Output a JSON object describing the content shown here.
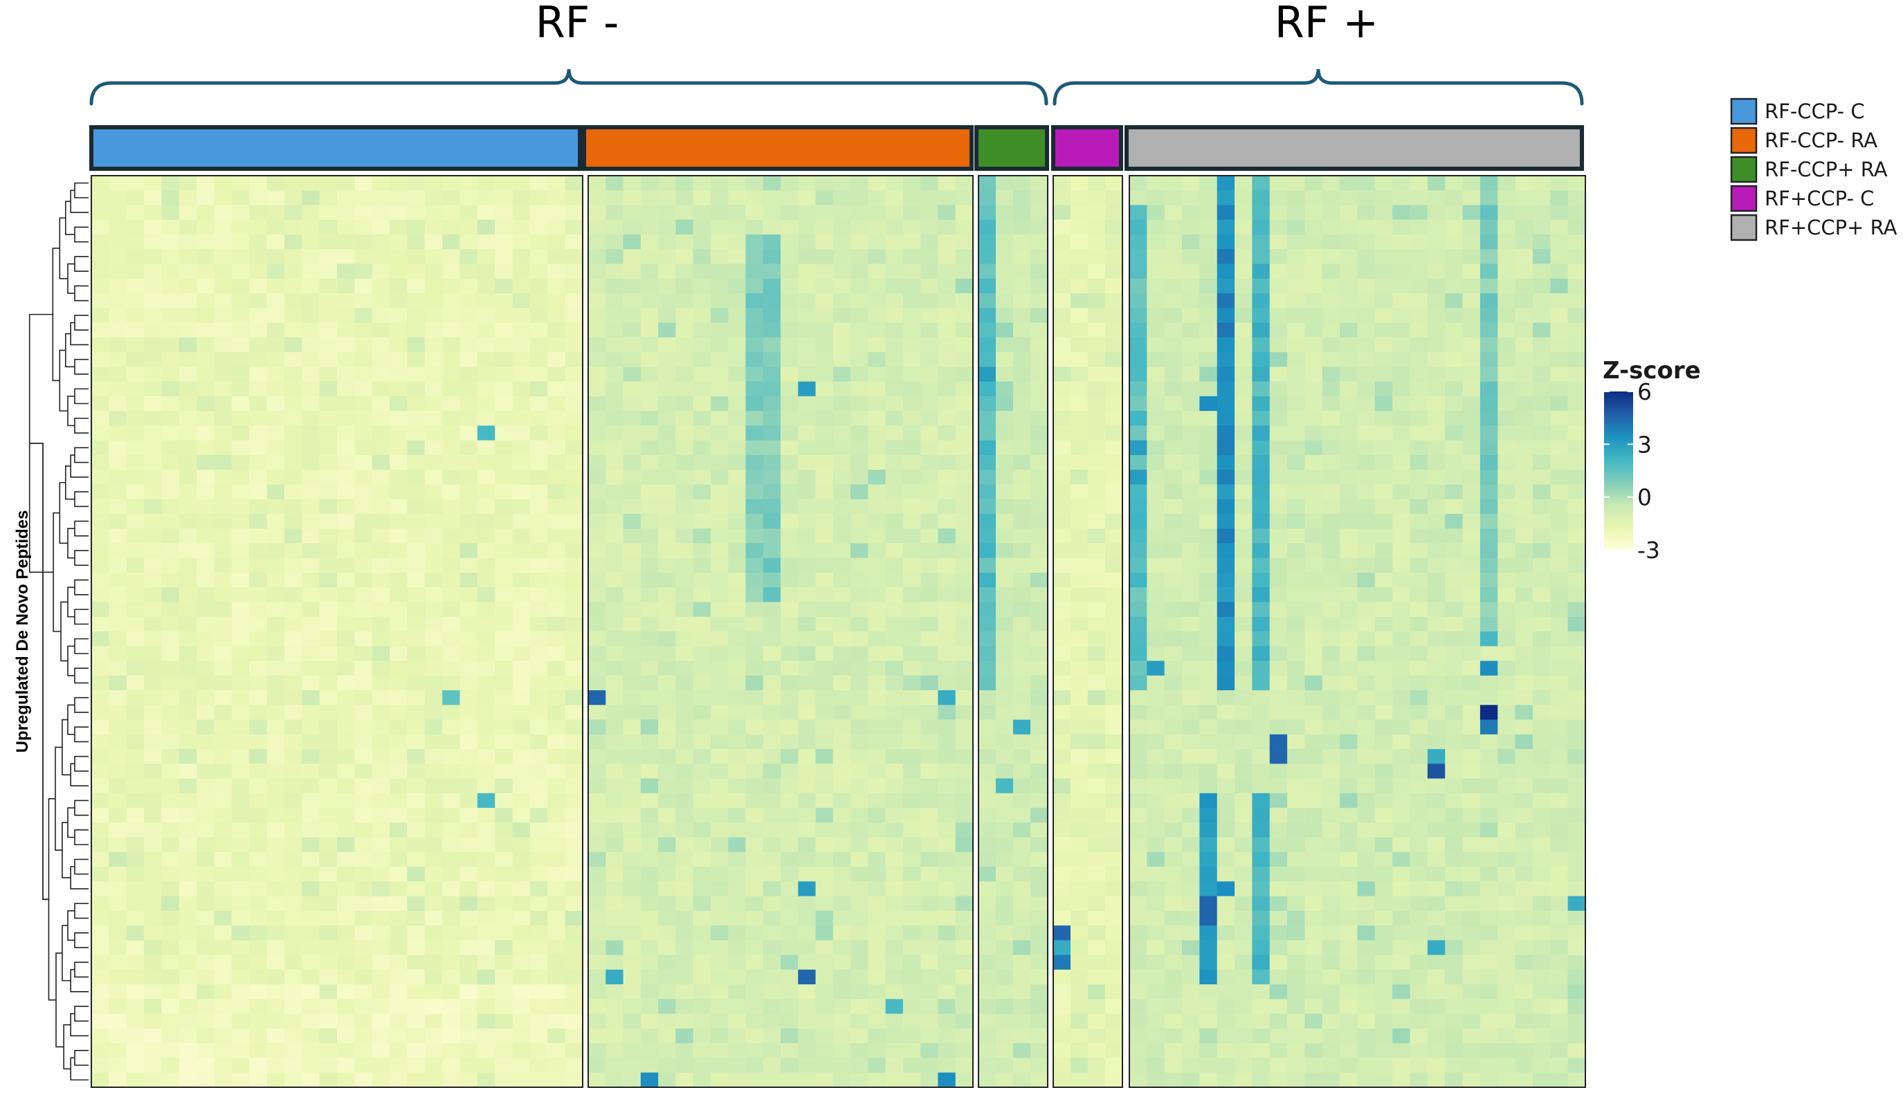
{
  "chart_data": {
    "type": "heatmap",
    "title": "",
    "ylabel": "Upregulated De Novo Peptides",
    "xlabel": "",
    "super_groups": [
      {
        "label": "RF -",
        "groups": [
          "RF-CCP- C",
          "RF-CCP- RA",
          "RF-CCP+ RA"
        ]
      },
      {
        "label": "RF +",
        "groups": [
          "RF+CCP- C",
          "RF+CCP+ RA"
        ]
      }
    ],
    "groups": [
      {
        "name": "RF-CCP- C",
        "color": "#4a98dc",
        "n_samples": 28
      },
      {
        "name": "RF-CCP- RA",
        "color": "#e8680a",
        "n_samples": 22
      },
      {
        "name": "RF-CCP+ RA",
        "color": "#3e8e27",
        "n_samples": 4
      },
      {
        "name": "RF+CCP- C",
        "color": "#b81bb8",
        "n_samples": 4
      },
      {
        "name": "RF+CCP+ RA",
        "color": "#b0b0b0",
        "n_samples": 26
      }
    ],
    "n_peptides": 62,
    "colorbar": {
      "title": "Z-score",
      "ticks": [
        6,
        3,
        0,
        -3
      ],
      "range": [
        -3,
        6
      ],
      "colors": [
        "#ffffd9",
        "#e9f6b1",
        "#c7e9b4",
        "#7fcdbb",
        "#41b6c4",
        "#1d91c0",
        "#225ea8",
        "#0c2c84"
      ]
    },
    "legend_placement": "top-right",
    "hot_spots": [
      {
        "group": "RF+CCP+ RA",
        "sample": 5,
        "rows": [
          0,
          34
        ],
        "z": 3.5
      },
      {
        "group": "RF+CCP+ RA",
        "sample": 7,
        "rows": [
          0,
          34
        ],
        "z": 2.0
      },
      {
        "group": "RF+CCP+ RA",
        "sample": 4,
        "rows": [
          42,
          54
        ],
        "z": 3.0
      },
      {
        "group": "RF+CCP+ RA",
        "sample": 7,
        "rows": [
          42,
          54
        ],
        "z": 2.0
      },
      {
        "group": "RF+CCP+ RA",
        "sample": 0,
        "rows": [
          2,
          34
        ],
        "z": 1.6
      },
      {
        "group": "RF+CCP+ RA",
        "sample": 20,
        "rows": [
          0,
          30
        ],
        "z": 0.9
      },
      {
        "group": "RF-CCP+ RA",
        "sample": 0,
        "rows": [
          0,
          34
        ],
        "z": 1.7
      },
      {
        "group": "RF-CCP- RA",
        "sample": 9,
        "rows": [
          4,
          28
        ],
        "z": 0.9
      },
      {
        "group": "RF-CCP- RA",
        "sample": 10,
        "rows": [
          4,
          28
        ],
        "z": 0.9
      }
    ],
    "point_cells": [
      {
        "group": "RF+CCP+ RA",
        "sample": 20,
        "row": 36,
        "z": 6
      },
      {
        "group": "RF+CCP+ RA",
        "sample": 20,
        "row": 37,
        "z": 4
      },
      {
        "group": "RF+CCP+ RA",
        "sample": 8,
        "row": 38,
        "z": 4.5
      },
      {
        "group": "RF+CCP+ RA",
        "sample": 8,
        "row": 39,
        "z": 4.5
      },
      {
        "group": "RF+CCP+ RA",
        "sample": 17,
        "row": 40,
        "z": 5
      },
      {
        "group": "RF+CCP+ RA",
        "sample": 4,
        "row": 49,
        "z": 4.5
      },
      {
        "group": "RF+CCP+ RA",
        "sample": 4,
        "row": 50,
        "z": 4.5
      },
      {
        "group": "RF+CCP+ RA",
        "sample": 5,
        "row": 48,
        "z": 3.5
      },
      {
        "group": "RF+CCP+ RA",
        "sample": 1,
        "row": 33,
        "z": 3.0
      },
      {
        "group": "RF+CCP+ RA",
        "sample": 0,
        "row": 18,
        "z": 3.0
      },
      {
        "group": "RF+CCP+ RA",
        "sample": 0,
        "row": 20,
        "z": 3.0
      },
      {
        "group": "RF+CCP+ RA",
        "sample": 4,
        "row": 15,
        "z": 3.5
      },
      {
        "group": "RF+CCP+ RA",
        "sample": 20,
        "row": 33,
        "z": 3.5
      },
      {
        "group": "RF+CCP+ RA",
        "sample": 4,
        "row": 52,
        "z": 3.0
      },
      {
        "group": "RF+CCP+ RA",
        "sample": 17,
        "row": 52,
        "z": 2.5
      },
      {
        "group": "RF+CCP+ RA",
        "sample": 25,
        "row": 49,
        "z": 2.5
      },
      {
        "group": "RF+CCP+ RA",
        "sample": 17,
        "row": 39,
        "z": 2.5
      },
      {
        "group": "RF+CCP+ RA",
        "sample": 20,
        "row": 31,
        "z": 2.0
      },
      {
        "group": "RF+CCP- C",
        "sample": 0,
        "row": 51,
        "z": 4.5
      },
      {
        "group": "RF+CCP- C",
        "sample": 0,
        "row": 52,
        "z": 2.5
      },
      {
        "group": "RF+CCP- C",
        "sample": 0,
        "row": 53,
        "z": 4.0
      },
      {
        "group": "RF-CCP- RA",
        "sample": 0,
        "row": 35,
        "z": 4.5
      },
      {
        "group": "RF-CCP- RA",
        "sample": 12,
        "row": 54,
        "z": 4.5
      },
      {
        "group": "RF-CCP- RA",
        "sample": 12,
        "row": 48,
        "z": 3.0
      },
      {
        "group": "RF-CCP- RA",
        "sample": 12,
        "row": 14,
        "z": 3.0
      },
      {
        "group": "RF-CCP- RA",
        "sample": 3,
        "row": 61,
        "z": 3.5
      },
      {
        "group": "RF-CCP- RA",
        "sample": 20,
        "row": 61,
        "z": 3.5
      },
      {
        "group": "RF-CCP- RA",
        "sample": 20,
        "row": 35,
        "z": 2.5
      },
      {
        "group": "RF-CCP- RA",
        "sample": 1,
        "row": 54,
        "z": 2.5
      },
      {
        "group": "RF-CCP- RA",
        "sample": 17,
        "row": 56,
        "z": 2.0
      },
      {
        "group": "RF-CCP+ RA",
        "sample": 0,
        "row": 13,
        "z": 3.0
      },
      {
        "group": "RF-CCP+ RA",
        "sample": 2,
        "row": 37,
        "z": 2.5
      },
      {
        "group": "RF-CCP+ RA",
        "sample": 1,
        "row": 41,
        "z": 2.0
      },
      {
        "group": "RF-CCP- C",
        "sample": 22,
        "row": 17,
        "z": 2.0
      },
      {
        "group": "RF-CCP- C",
        "sample": 22,
        "row": 42,
        "z": 2.0
      },
      {
        "group": "RF-CCP- C",
        "sample": 20,
        "row": 35,
        "z": 1.5
      }
    ]
  }
}
